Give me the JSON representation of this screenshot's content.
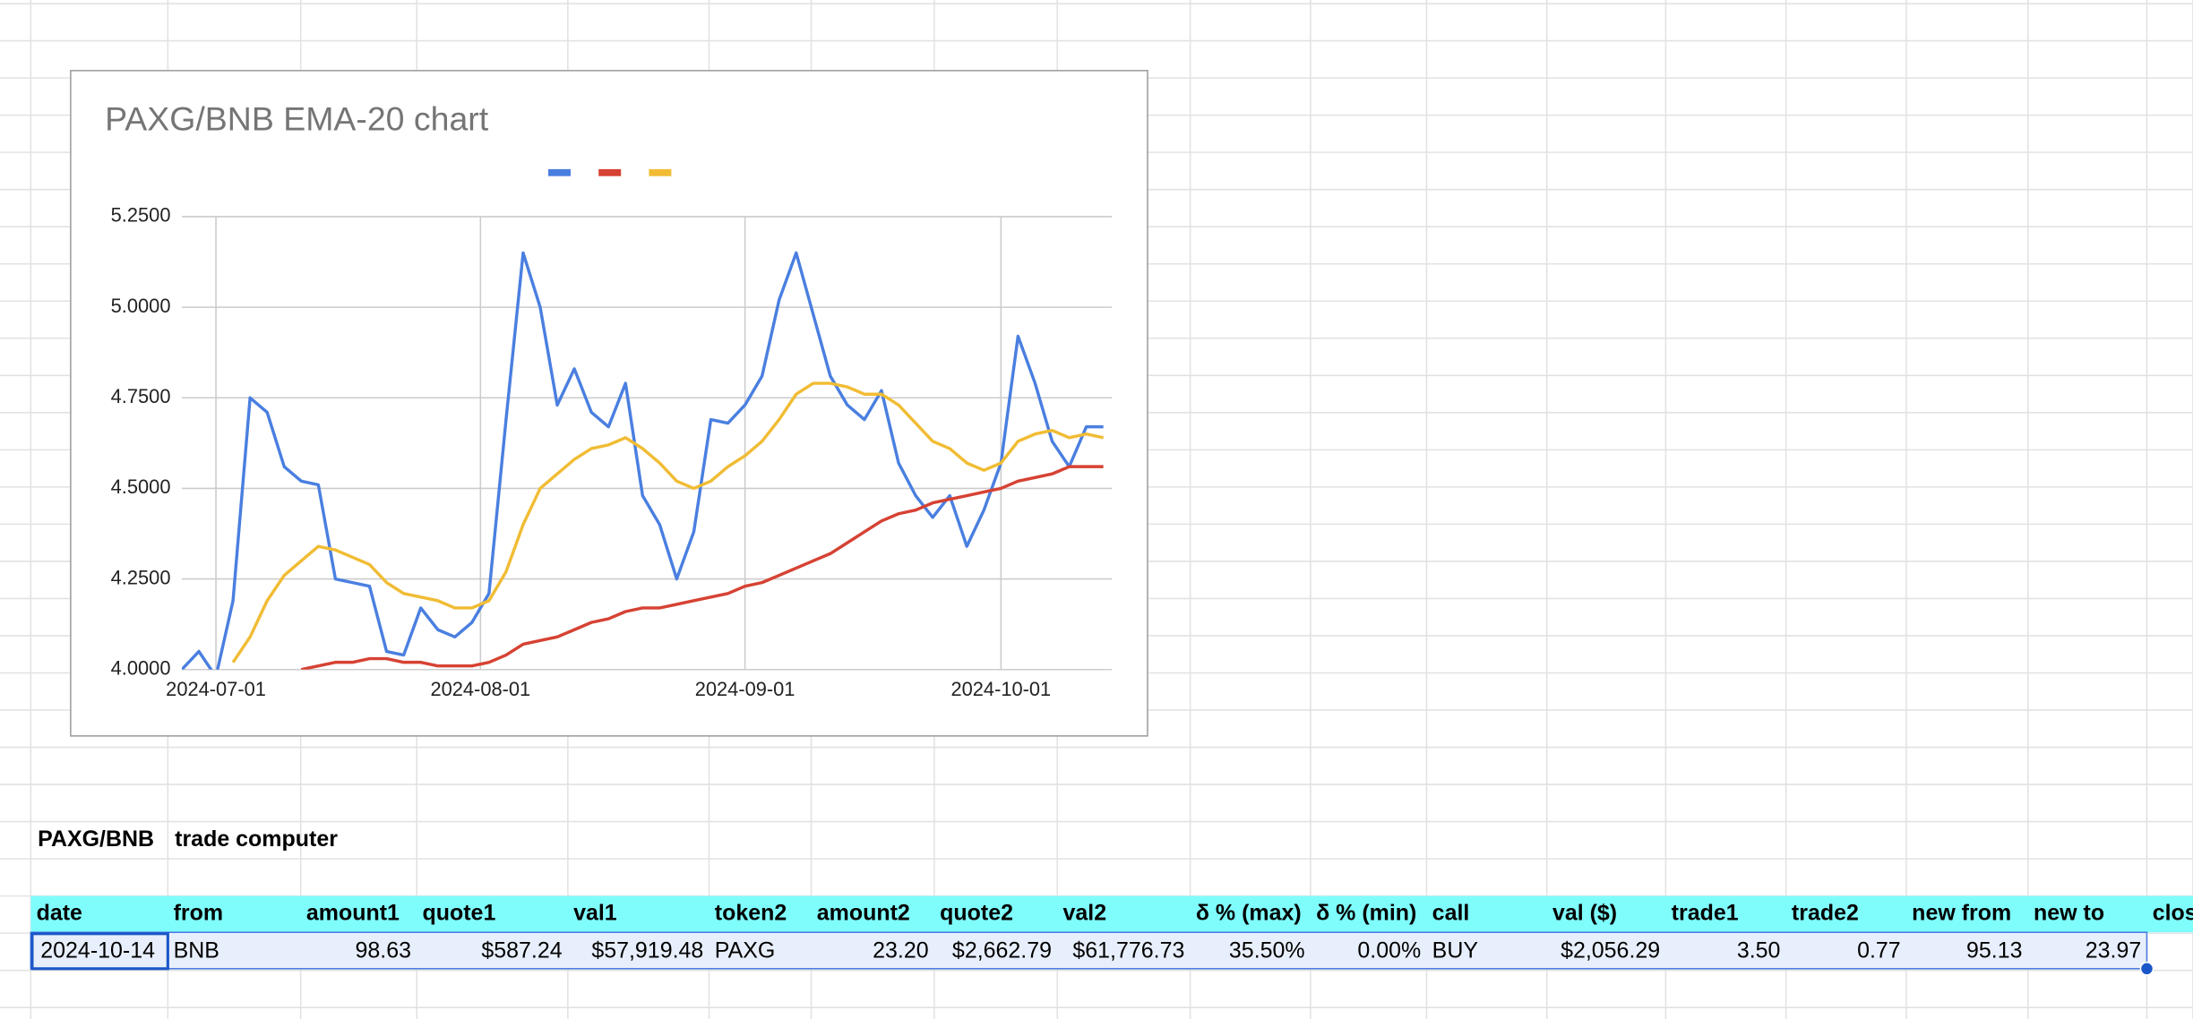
{
  "chart_data": {
    "type": "line",
    "title": "PAXG/BNB EMA-20 chart",
    "x": [
      "2024-06-27",
      "2024-06-29",
      "2024-07-01",
      "2024-07-03",
      "2024-07-05",
      "2024-07-07",
      "2024-07-09",
      "2024-07-11",
      "2024-07-13",
      "2024-07-15",
      "2024-07-17",
      "2024-07-19",
      "2024-07-21",
      "2024-07-23",
      "2024-07-25",
      "2024-07-27",
      "2024-07-29",
      "2024-07-31",
      "2024-08-02",
      "2024-08-04",
      "2024-08-06",
      "2024-08-08",
      "2024-08-10",
      "2024-08-12",
      "2024-08-14",
      "2024-08-16",
      "2024-08-18",
      "2024-08-20",
      "2024-08-22",
      "2024-08-24",
      "2024-08-26",
      "2024-08-28",
      "2024-08-30",
      "2024-09-01",
      "2024-09-03",
      "2024-09-05",
      "2024-09-07",
      "2024-09-09",
      "2024-09-11",
      "2024-09-13",
      "2024-09-15",
      "2024-09-17",
      "2024-09-19",
      "2024-09-21",
      "2024-09-23",
      "2024-09-25",
      "2024-09-27",
      "2024-09-29",
      "2024-10-01",
      "2024-10-03",
      "2024-10-05",
      "2024-10-07",
      "2024-10-09",
      "2024-10-11",
      "2024-10-13"
    ],
    "series": [
      {
        "color": "#4a7fe0",
        "values": [
          4.0,
          4.05,
          3.98,
          4.19,
          4.75,
          4.71,
          4.56,
          4.52,
          4.51,
          4.25,
          4.24,
          4.23,
          4.05,
          4.04,
          4.17,
          4.11,
          4.09,
          4.13,
          4.21,
          4.69,
          5.15,
          5.0,
          4.73,
          4.83,
          4.71,
          4.67,
          4.79,
          4.48,
          4.4,
          4.25,
          4.38,
          4.69,
          4.68,
          4.73,
          4.81,
          5.02,
          5.15,
          4.98,
          4.81,
          4.73,
          4.69,
          4.77,
          4.57,
          4.48,
          4.42,
          4.48,
          4.34,
          4.44,
          4.57,
          4.92,
          4.79,
          4.63,
          4.56,
          4.67,
          4.67
        ]
      },
      {
        "color": "#d64233",
        "values": [
          null,
          null,
          null,
          null,
          null,
          null,
          null,
          4.0,
          4.01,
          4.02,
          4.02,
          4.03,
          4.03,
          4.02,
          4.02,
          4.01,
          4.01,
          4.01,
          4.02,
          4.04,
          4.07,
          4.08,
          4.09,
          4.11,
          4.13,
          4.14,
          4.16,
          4.17,
          4.17,
          4.18,
          4.19,
          4.2,
          4.21,
          4.23,
          4.24,
          4.26,
          4.28,
          4.3,
          4.32,
          4.35,
          4.38,
          4.41,
          4.43,
          4.44,
          4.46,
          4.47,
          4.48,
          4.49,
          4.5,
          4.52,
          4.53,
          4.54,
          4.56,
          4.56,
          4.56
        ]
      },
      {
        "color": "#f1bc34",
        "values": [
          null,
          null,
          null,
          4.02,
          4.09,
          4.19,
          4.26,
          4.3,
          4.34,
          4.33,
          4.31,
          4.29,
          4.24,
          4.21,
          4.2,
          4.19,
          4.17,
          4.17,
          4.19,
          4.27,
          4.4,
          4.5,
          4.54,
          4.58,
          4.61,
          4.62,
          4.64,
          4.61,
          4.57,
          4.52,
          4.5,
          4.52,
          4.56,
          4.59,
          4.63,
          4.69,
          4.76,
          4.79,
          4.79,
          4.78,
          4.76,
          4.76,
          4.73,
          4.68,
          4.63,
          4.61,
          4.57,
          4.55,
          4.57,
          4.63,
          4.65,
          4.66,
          4.64,
          4.65,
          4.64
        ]
      }
    ],
    "xlim": [
      "2024-06-27",
      "2024-10-14"
    ],
    "xticks": [
      "2024-07-01",
      "2024-08-01",
      "2024-09-01",
      "2024-10-01"
    ],
    "ylim": [
      4,
      5.25
    ],
    "yticks": [
      {
        "value": 4,
        "label": "4.0000"
      },
      {
        "value": 4.25,
        "label": "4.2500"
      },
      {
        "value": 4.5,
        "label": "4.5000"
      },
      {
        "value": 4.75,
        "label": "4.7500"
      },
      {
        "value": 5,
        "label": "5.0000"
      },
      {
        "value": 5.25,
        "label": "5.2500"
      }
    ],
    "grid": true,
    "legend": "top"
  },
  "table": {
    "title": [
      "PAXG/BNB",
      "trade computer"
    ],
    "header": [
      "date",
      "from",
      "amount1",
      "quote1",
      "val1",
      "token2",
      "amount2",
      "quote2",
      "val2",
      "δ % (max)",
      "δ % (min)",
      "call",
      "val ($)",
      "trade1",
      "trade2",
      "new from",
      "new to",
      "clos"
    ],
    "rows": [
      [
        "2024-10-14",
        "BNB",
        "98.63",
        "$587.24",
        "$57,919.48",
        "PAXG",
        "23.20",
        "$2,662.79",
        "$61,776.73",
        "35.50%",
        "0.00%",
        "BUY",
        "$2,056.29",
        "3.50",
        "0.77",
        "95.13",
        "23.97"
      ]
    ]
  }
}
